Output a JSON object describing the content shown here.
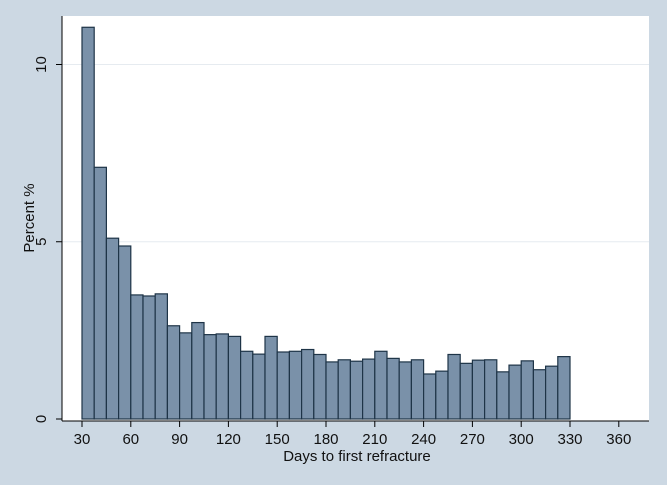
{
  "chart_data": {
    "type": "bar",
    "title": "",
    "xlabel": "Days to first refracture",
    "ylabel": "Percent %",
    "bin_width": 7.5,
    "bin_start": 30,
    "xlim": [
      30,
      367.5
    ],
    "ylim": [
      0,
      11.3
    ],
    "x_ticks": [
      30,
      60,
      90,
      120,
      150,
      180,
      210,
      240,
      270,
      300,
      330,
      360
    ],
    "y_ticks": [
      0,
      5,
      10
    ],
    "grid": "horizontal",
    "legend": "none",
    "values": [
      11.05,
      7.1,
      5.1,
      4.88,
      3.5,
      3.47,
      3.53,
      2.63,
      2.43,
      2.72,
      2.38,
      2.4,
      2.33,
      1.91,
      1.83,
      2.33,
      1.89,
      1.91,
      1.96,
      1.82,
      1.61,
      1.67,
      1.63,
      1.69,
      1.91,
      1.71,
      1.61,
      1.67,
      1.27,
      1.35,
      1.82,
      1.57,
      1.66,
      1.67,
      1.33,
      1.52,
      1.64,
      1.39,
      1.49,
      1.76
    ],
    "colors": {
      "bar_fill": "#7a91a9",
      "bar_edge": "#1e3447",
      "plot_bg": "#ffffff",
      "outer_bg": "#ccd8e3",
      "grid": "#e6ebf0"
    }
  }
}
